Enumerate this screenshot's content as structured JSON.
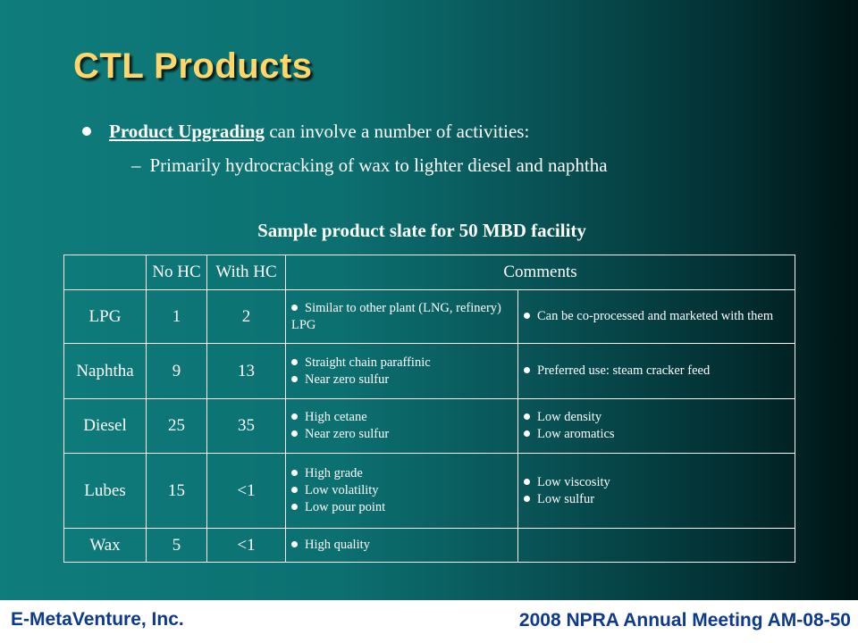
{
  "title": "CTL Products",
  "bullet": {
    "strong": "Product Upgrading",
    "rest": " can involve a number of activities:"
  },
  "sub_bullet": {
    "dash": "–",
    "text": "Primarily hydrocracking of wax to lighter diesel and naphtha"
  },
  "table_caption": "Sample product slate for 50 MBD facility",
  "table": {
    "headers": [
      "",
      "No HC",
      "With HC",
      "Comments"
    ],
    "rows": [
      {
        "product": "LPG",
        "no_hc": "1",
        "with_hc": "2",
        "comments_a": [
          "Similar to other plant (LNG, refinery) LPG"
        ],
        "comments_b": [
          "Can be co-processed and marketed with them"
        ]
      },
      {
        "product": "Naphtha",
        "no_hc": "9",
        "with_hc": "13",
        "comments_a": [
          "Straight chain paraffinic",
          "Near zero sulfur"
        ],
        "comments_b": [
          "Preferred use:  steam cracker feed"
        ]
      },
      {
        "product": "Diesel",
        "no_hc": "25",
        "with_hc": "35",
        "comments_a": [
          "High cetane",
          "Near zero sulfur"
        ],
        "comments_b": [
          "Low density",
          "Low aromatics"
        ]
      },
      {
        "product": "Lubes",
        "no_hc": "15",
        "with_hc": "<1",
        "comments_a": [
          "High grade",
          "Low volatility",
          "Low pour point"
        ],
        "comments_b": [
          "Low viscosity",
          "Low sulfur"
        ]
      },
      {
        "product": "Wax",
        "no_hc": "5",
        "with_hc": "<1",
        "comments_a": [
          "High quality"
        ],
        "comments_b": []
      }
    ]
  },
  "footer": {
    "left": "E-MetaVenture, Inc.",
    "right": "2008 NPRA Annual Meeting AM-08-50"
  },
  "colors": {
    "title": "#ffd66b",
    "background_left": "#0f7d7c",
    "background_right": "#001414",
    "footer_text": "#0d3a8c"
  }
}
